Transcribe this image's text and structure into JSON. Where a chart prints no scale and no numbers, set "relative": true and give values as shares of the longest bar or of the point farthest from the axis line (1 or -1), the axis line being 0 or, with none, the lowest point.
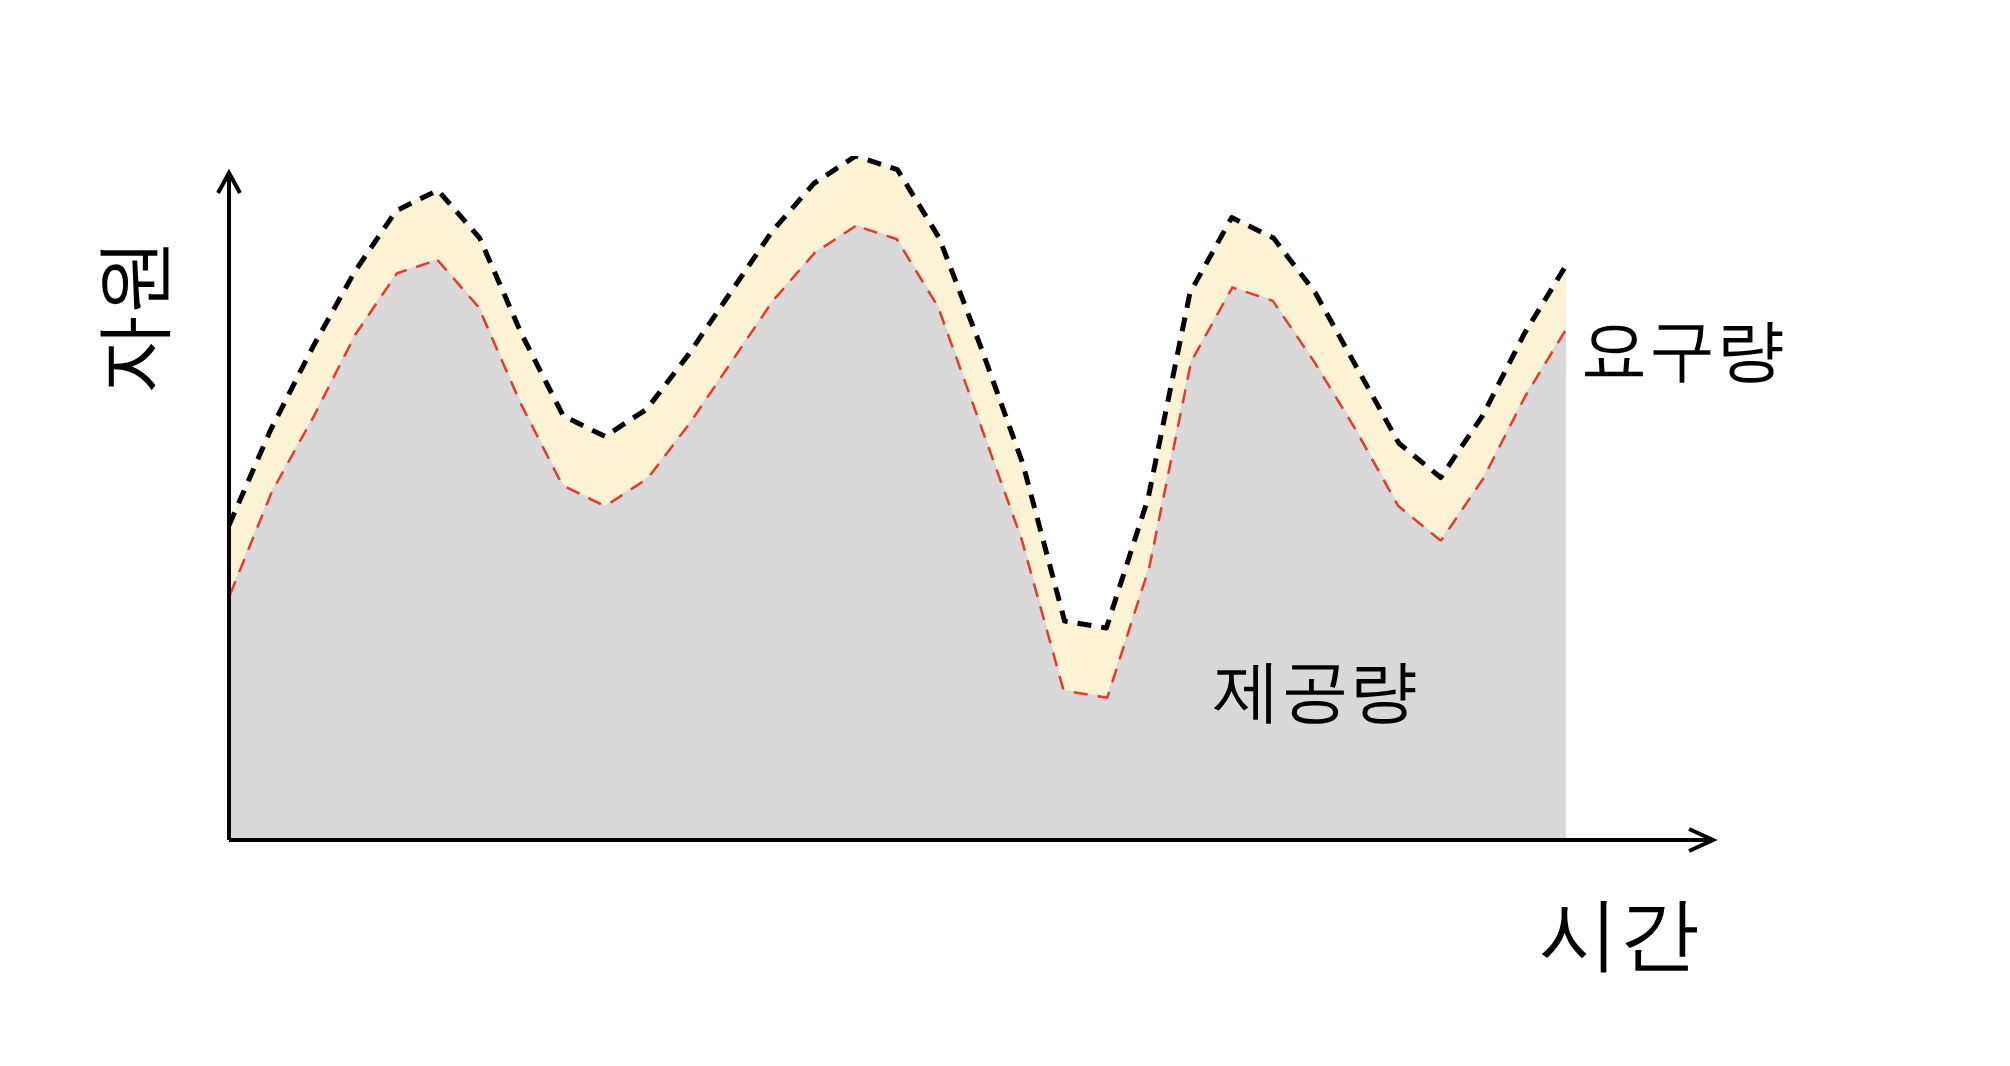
{
  "chart_data": {
    "type": "area",
    "relative": true,
    "xlabel": "시간",
    "ylabel": "자원",
    "categories": [
      null,
      null,
      null,
      null,
      null,
      null,
      null,
      null,
      null,
      null,
      null,
      null,
      null,
      null,
      null,
      null,
      null,
      null,
      null,
      null,
      null,
      null,
      null,
      null,
      null,
      null,
      null,
      null,
      null,
      null,
      null,
      null,
      null
    ],
    "line_style": "dashed",
    "marker": "none",
    "legend": false,
    "series": [
      {
        "name": "요구량",
        "color": "#000000",
        "values": [
          0.46,
          0.6,
          0.72,
          0.83,
          0.92,
          0.95,
          0.88,
          0.74,
          0.62,
          0.59,
          0.63,
          0.71,
          0.8,
          0.89,
          0.96,
          1.0,
          0.98,
          0.88,
          0.72,
          0.55,
          0.32,
          0.31,
          0.5,
          0.8,
          0.91,
          0.88,
          0.8,
          0.69,
          0.58,
          0.53,
          0.62,
          0.74,
          0.84
        ]
      },
      {
        "name": "제공량",
        "color": "#e8392a",
        "values": [
          0.36,
          0.51,
          0.62,
          0.74,
          0.83,
          0.85,
          0.78,
          0.64,
          0.52,
          0.49,
          0.53,
          0.61,
          0.7,
          0.79,
          0.86,
          0.9,
          0.88,
          0.78,
          0.61,
          0.44,
          0.22,
          0.21,
          0.4,
          0.7,
          0.81,
          0.79,
          0.7,
          0.6,
          0.49,
          0.44,
          0.53,
          0.65,
          0.75
        ]
      }
    ]
  }
}
